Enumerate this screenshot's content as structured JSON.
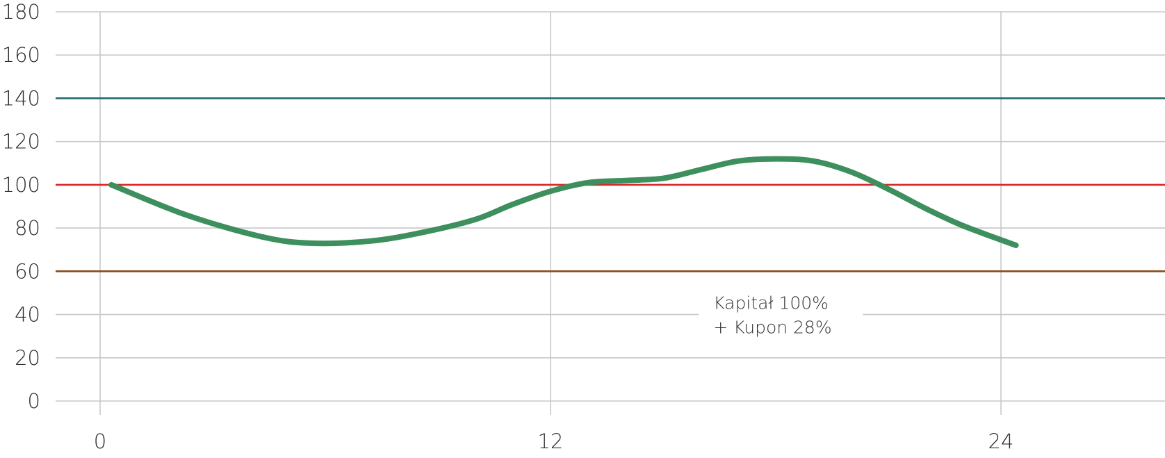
{
  "chart_data": {
    "type": "line",
    "title": "",
    "xlabel": "",
    "ylabel": "",
    "xlim": [
      -1,
      28
    ],
    "ylim": [
      0,
      180
    ],
    "x_ticks": [
      0,
      12,
      24
    ],
    "x_tick_labels": [
      "0",
      "12",
      "24"
    ],
    "y_ticks": [
      0,
      20,
      40,
      60,
      80,
      100,
      120,
      140,
      160,
      180
    ],
    "y_tick_labels": [
      "0",
      "20",
      "40",
      "60",
      "80",
      "100",
      "120",
      "140",
      "160",
      "180"
    ],
    "grid": true,
    "legend": "none",
    "series": [
      {
        "color": "#3d8f5e",
        "x": [
          0.3,
          2.3,
          4.3,
          5.6,
          7.2,
          8.6,
          10.0,
          11.0,
          12.0,
          13.0,
          14.0,
          15.0,
          16.0,
          17.0,
          18.0,
          19.0,
          20.0,
          21.0,
          22.0,
          23.0,
          24.4
        ],
        "y": [
          100,
          86,
          76,
          73,
          74,
          78,
          84,
          91,
          97,
          101,
          102,
          103,
          107,
          111,
          112,
          111,
          106,
          98,
          89,
          81,
          72
        ]
      }
    ],
    "reference_lines": [
      {
        "y": 140,
        "color": "#1f6b6b"
      },
      {
        "y": 100,
        "color": "#d9262a"
      },
      {
        "y": 60,
        "color": "#8a4a17"
      }
    ],
    "annotations": [
      {
        "lines": [
          "Kapitał 100%",
          "+ Kupon 28%"
        ],
        "x": 17.8,
        "y": 30
      }
    ]
  }
}
